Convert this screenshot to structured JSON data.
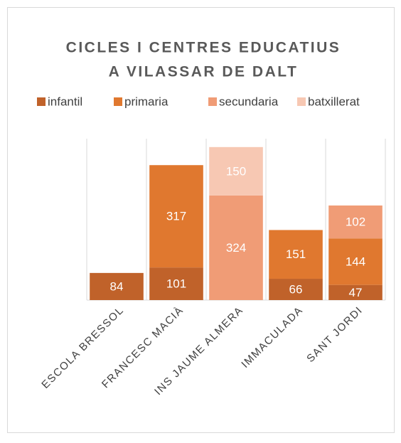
{
  "chart_data": {
    "type": "bar",
    "stacked": true,
    "title": [
      "CICLES I CENTRES EDUCATIUS",
      "A VILASSAR DE DALT"
    ],
    "categories": [
      "ESCOLA BRESSOL",
      "FRANCESC MACIÀ",
      "INS JAUME ALMERA",
      "IMMACULADA",
      "SANT JORDI"
    ],
    "series": [
      {
        "name": "infantil",
        "color": "#c0622a",
        "values": [
          84,
          101,
          null,
          66,
          47
        ]
      },
      {
        "name": "primaria",
        "color": "#e0782f",
        "values": [
          null,
          317,
          null,
          151,
          144
        ]
      },
      {
        "name": "secundaria",
        "color": "#f09c76",
        "values": [
          null,
          null,
          324,
          null,
          102
        ]
      },
      {
        "name": "batxillerat",
        "color": "#f7c8b3",
        "values": [
          null,
          null,
          150,
          null,
          null
        ]
      }
    ],
    "ylim": [
      0,
      500
    ],
    "legend": "top"
  }
}
